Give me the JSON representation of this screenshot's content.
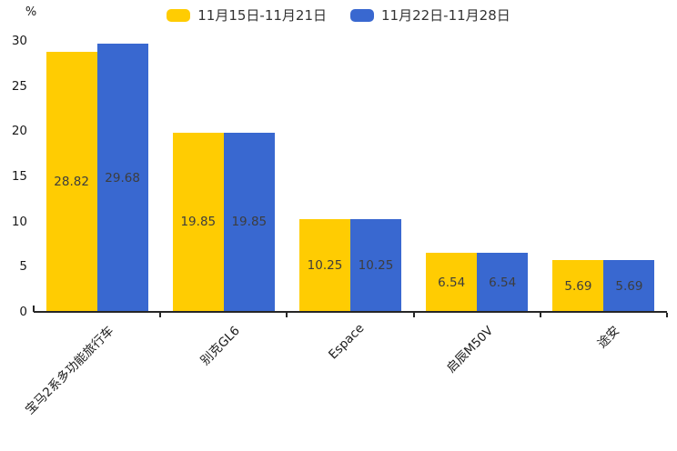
{
  "chart_data": {
    "type": "bar",
    "categories": [
      "宝马2系多功能旅行车",
      "别克GL6",
      "Espace",
      "启辰M50V",
      "途安"
    ],
    "series": [
      {
        "name": "11月15日-11月21日",
        "color": "#FFCC02",
        "values": [
          28.82,
          19.85,
          10.25,
          6.54,
          5.69
        ]
      },
      {
        "name": "11月22日-11月28日",
        "color": "#3968D0",
        "values": [
          29.68,
          19.85,
          10.25,
          6.54,
          5.69
        ]
      }
    ],
    "title": "",
    "xlabel": "",
    "ylabel": "%",
    "ylim": [
      0,
      30
    ],
    "yticks": [
      0,
      5,
      10,
      15,
      20,
      25,
      30
    ],
    "grid": false,
    "legend_position": "top-center",
    "value_labels": "inside-center",
    "xtick_rotation_deg": 45
  },
  "colors": {
    "background": "#ffffff",
    "axis": "#262626",
    "value_label": "#3d3d3d",
    "tick_text": "#1a1a1a",
    "legend_text": "#333333"
  }
}
